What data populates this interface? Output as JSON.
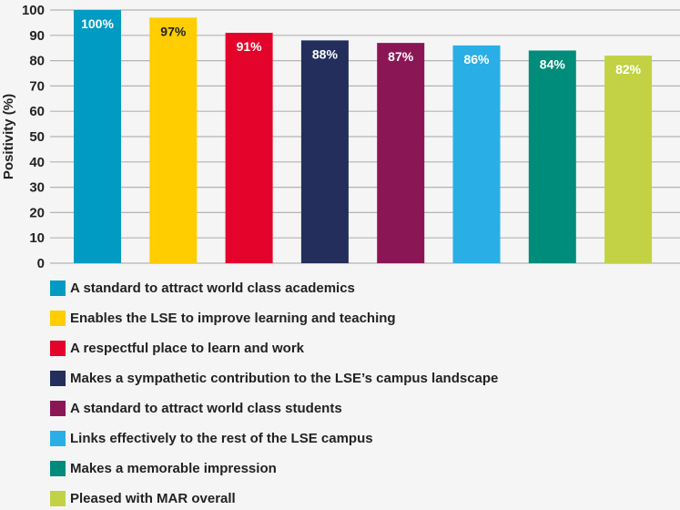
{
  "chart_data": {
    "type": "bar",
    "ylabel": "Positivity (%)",
    "xlabel": "",
    "ylim": [
      0,
      100
    ],
    "yticks": [
      0,
      10,
      20,
      30,
      40,
      50,
      60,
      70,
      80,
      90,
      100
    ],
    "grid": true,
    "legend_position": "bottom",
    "categories": [
      "A standard to attract world class academics",
      "Enables the LSE to improve learning and teaching",
      "A respectful place to learn and work",
      "Makes a sympathetic contribution to the LSE’s campus landscape",
      "A standard to attract world class students",
      "Links effectively to the rest of the LSE campus",
      "Makes a memorable impression",
      "Pleased with MAR overall"
    ],
    "values": [
      100,
      97,
      91,
      88,
      87,
      86,
      84,
      82
    ],
    "data_labels": [
      "100%",
      "97%",
      "91%",
      "88%",
      "87%",
      "86%",
      "84%",
      "82%"
    ],
    "colors": [
      "#009bc2",
      "#ffcd00",
      "#e4032b",
      "#232e5c",
      "#8b1656",
      "#2aaee6",
      "#008c7a",
      "#c2d244"
    ],
    "label_colors": [
      "#ffffff",
      "#222222",
      "#ffffff",
      "#ffffff",
      "#ffffff",
      "#ffffff",
      "#ffffff",
      "#ffffff"
    ]
  }
}
